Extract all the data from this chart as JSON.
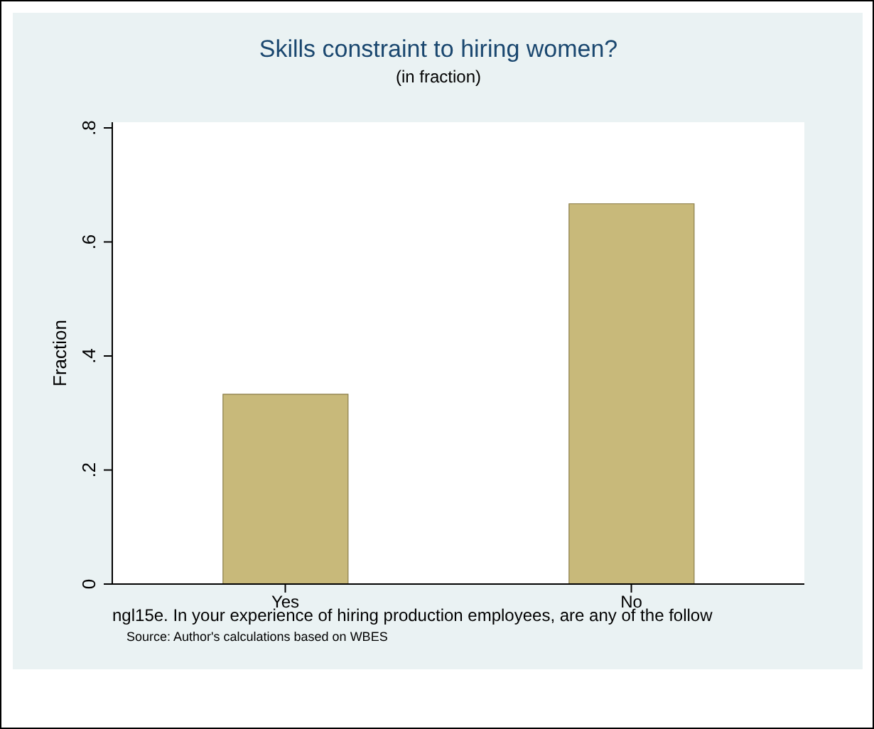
{
  "chart_data": {
    "type": "bar",
    "title": "Skills constraint to hiring women?",
    "subtitle": "(in fraction)",
    "xlabel": "ngl15e. In your experience of hiring production employees, are any of the follow",
    "ylabel": "Fraction",
    "annotations": [
      "Source: Author's calculations based on WBES"
    ],
    "categories": [
      "Yes",
      "No"
    ],
    "values": [
      0.333,
      0.667
    ],
    "color": "#c8b97a",
    "ylim": [
      0,
      0.81
    ],
    "yticks": [
      0,
      {
        "value": 0.2,
        "label": ".2"
      },
      {
        "value": 0.4,
        "label": ".4"
      },
      {
        "value": 0.6,
        "label": ".6"
      },
      {
        "value": 0.8,
        "label": ".8"
      }
    ],
    "grid": false
  }
}
